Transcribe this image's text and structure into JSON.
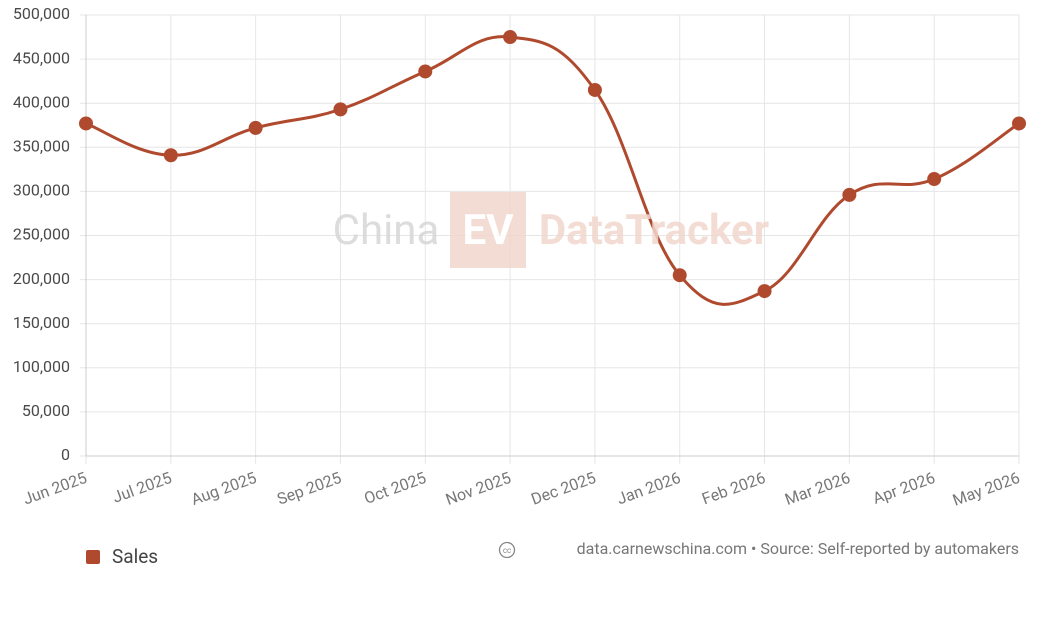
{
  "chart_data": {
    "type": "line",
    "watermark": {
      "left": "China",
      "badge": "EV",
      "right": "DataTracker"
    },
    "categories": [
      "Jun 2025",
      "Jul 2025",
      "Aug 2025",
      "Sep 2025",
      "Oct 2025",
      "Nov 2025",
      "Dec 2025",
      "Jan 2026",
      "Feb 2026",
      "Mar 2026",
      "Apr 2026",
      "May 2026"
    ],
    "series": [
      {
        "name": "Sales",
        "color": "#b04a2e",
        "values": [
          377000,
          341000,
          372000,
          393000,
          436000,
          475000,
          415000,
          205000,
          187000,
          296000,
          314000,
          377000
        ]
      }
    ],
    "ylim": [
      0,
      500000
    ],
    "yticks": [
      0,
      {
        "value": 50000,
        "label": "50,000"
      },
      {
        "value": 100000,
        "label": "100,000"
      },
      {
        "value": 150000,
        "label": "150,000"
      },
      {
        "value": 200000,
        "label": "200,000"
      },
      {
        "value": 250000,
        "label": "250,000"
      },
      {
        "value": 300000,
        "label": "300,000"
      },
      {
        "value": 350000,
        "label": "350,000"
      },
      {
        "value": 400000,
        "label": "400,000"
      },
      {
        "value": 450000,
        "label": "450,000"
      },
      {
        "value": 500000,
        "label": "500,000"
      }
    ],
    "grid": true,
    "legend": "bottom-left",
    "source_note": "data.carnewschina.com • Source: Self-reported by automakers"
  }
}
